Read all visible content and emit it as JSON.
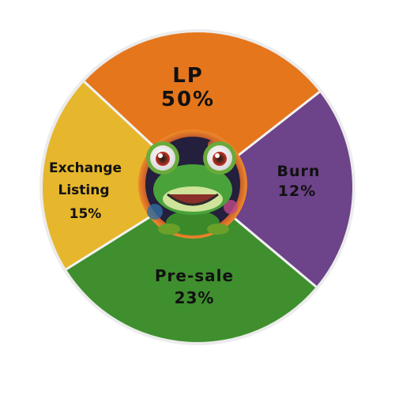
{
  "chart_data": {
    "type": "pie",
    "slices": [
      {
        "name": "LP",
        "value": 50,
        "value_label": "50%",
        "color": "#E5761C"
      },
      {
        "name": "Burn",
        "value": 12,
        "value_label": "12%",
        "color": "#6D4389"
      },
      {
        "name": "Pre-sale",
        "value": 23,
        "value_label": "23%",
        "color": "#3F8F2E"
      },
      {
        "name": "Exchange Listing",
        "value": 15,
        "value_label": "15%",
        "color": "#E6B62C"
      }
    ],
    "center_image": "frog-mascot",
    "legend": "none"
  }
}
